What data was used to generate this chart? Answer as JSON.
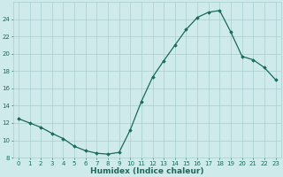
{
  "x": [
    0,
    1,
    2,
    3,
    4,
    5,
    6,
    7,
    8,
    9,
    10,
    11,
    12,
    13,
    14,
    15,
    16,
    17,
    18,
    19,
    20,
    21,
    22,
    23
  ],
  "y": [
    12.5,
    12.0,
    11.5,
    10.8,
    10.2,
    9.3,
    8.8,
    8.5,
    8.4,
    8.6,
    11.2,
    14.5,
    17.3,
    19.2,
    21.0,
    22.8,
    24.2,
    24.8,
    25.0,
    22.5,
    19.7,
    19.3,
    18.4,
    17.0
  ],
  "xlabel": "Humidex (Indice chaleur)",
  "ylim": [
    8,
    26
  ],
  "xlim": [
    -0.5,
    23.5
  ],
  "yticks": [
    8,
    10,
    12,
    14,
    16,
    18,
    20,
    22,
    24
  ],
  "xticks": [
    0,
    1,
    2,
    3,
    4,
    5,
    6,
    7,
    8,
    9,
    10,
    11,
    12,
    13,
    14,
    15,
    16,
    17,
    18,
    19,
    20,
    21,
    22,
    23
  ],
  "line_color": "#1a6b5a",
  "marker": "D",
  "marker_size": 1.8,
  "bg_color": "#ceeaea",
  "grid_color": "#aacece",
  "line_width": 0.9,
  "tick_fontsize": 5.0,
  "xlabel_fontsize": 6.5,
  "tick_color": "#1a6b5a"
}
